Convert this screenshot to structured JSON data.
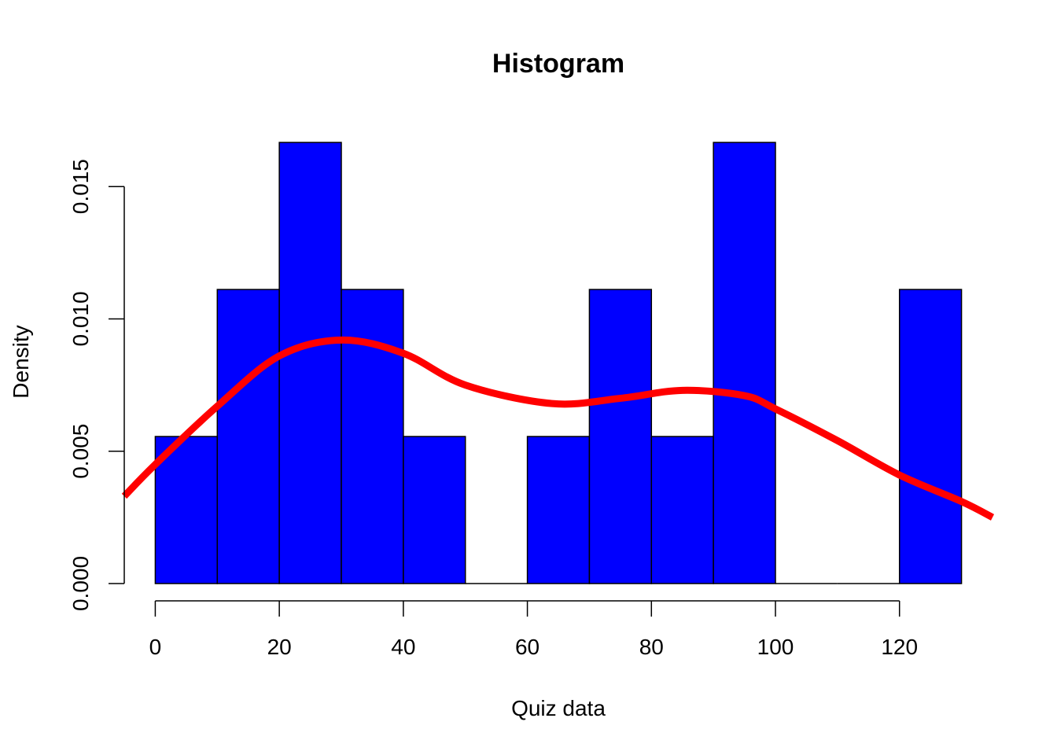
{
  "chart_data": {
    "type": "bar",
    "title": "Histogram",
    "xlabel": "Quiz data",
    "ylabel": "Density",
    "bins": [
      {
        "x0": 0,
        "x1": 10,
        "density": 0.005556
      },
      {
        "x0": 10,
        "x1": 20,
        "density": 0.011111
      },
      {
        "x0": 20,
        "x1": 30,
        "density": 0.016667
      },
      {
        "x0": 30,
        "x1": 40,
        "density": 0.011111
      },
      {
        "x0": 40,
        "x1": 50,
        "density": 0.005556
      },
      {
        "x0": 50,
        "x1": 60,
        "density": 0.0
      },
      {
        "x0": 60,
        "x1": 70,
        "density": 0.005556
      },
      {
        "x0": 70,
        "x1": 80,
        "density": 0.011111
      },
      {
        "x0": 80,
        "x1": 90,
        "density": 0.005556
      },
      {
        "x0": 90,
        "x1": 100,
        "density": 0.016667
      },
      {
        "x0": 100,
        "x1": 110,
        "density": 0.0
      },
      {
        "x0": 110,
        "x1": 120,
        "density": 0.0
      },
      {
        "x0": 120,
        "x1": 130,
        "density": 0.011111
      }
    ],
    "density_curve": {
      "x": [
        -5,
        0,
        10,
        20,
        30,
        40,
        50,
        64,
        75,
        85,
        95,
        100,
        110,
        120,
        130,
        135
      ],
      "y": [
        0.0033,
        0.0045,
        0.0067,
        0.0086,
        0.0092,
        0.0087,
        0.0075,
        0.0068,
        0.007,
        0.0073,
        0.0071,
        0.0066,
        0.0054,
        0.0041,
        0.0031,
        0.0025
      ]
    },
    "xticks": [
      0,
      20,
      40,
      60,
      80,
      100,
      120
    ],
    "xtick_labels": [
      "0",
      "20",
      "40",
      "60",
      "80",
      "100",
      "120"
    ],
    "yticks": [
      0.0,
      0.005,
      0.01,
      0.015
    ],
    "ytick_labels": [
      "0.000",
      "0.005",
      "0.010",
      "0.015"
    ],
    "xlim": [
      -5,
      135
    ],
    "ylim": [
      0,
      0.0167
    ],
    "grid": false,
    "colors": {
      "bars": "#0000ff",
      "bar_border": "#000000",
      "curve": "#ff0000"
    }
  }
}
